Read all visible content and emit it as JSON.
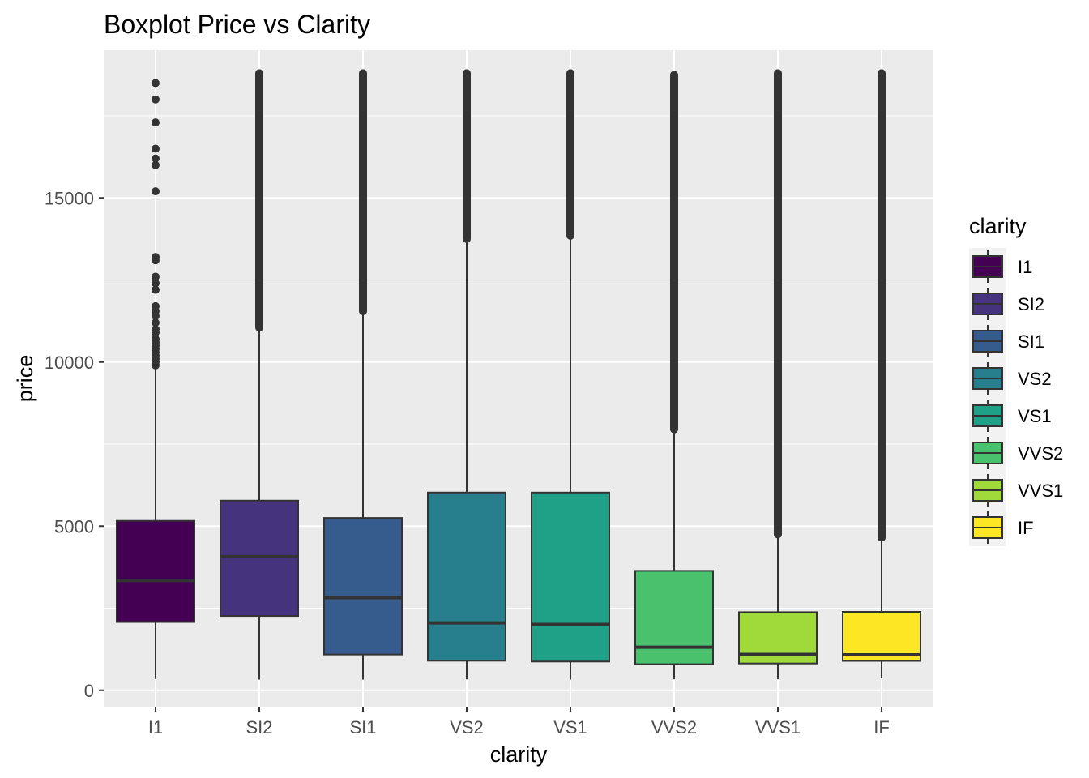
{
  "chart_data": {
    "type": "boxplot",
    "title": "Boxplot Price vs Clarity",
    "xlabel": "clarity",
    "ylabel": "price",
    "ylim": [
      -500,
      19500
    ],
    "y_ticks": [
      0,
      5000,
      10000,
      15000
    ],
    "grid": true,
    "legend": {
      "title": "clarity",
      "position": "right"
    },
    "categories": [
      "I1",
      "SI2",
      "SI1",
      "VS2",
      "VS1",
      "VVS2",
      "VVS1",
      "IF"
    ],
    "colors": [
      "#440154",
      "#46337E",
      "#365C8D",
      "#277F8E",
      "#1FA187",
      "#4AC16D",
      "#9FDA3A",
      "#FDE725"
    ],
    "boxes": [
      {
        "category": "I1",
        "min": 345,
        "q1": 2080,
        "median": 3344,
        "q3": 5161,
        "whisker_high": 9800,
        "outliers": [
          9900,
          10000,
          10100,
          10200,
          10300,
          10400,
          10500,
          10600,
          10700,
          10900,
          11000,
          11200,
          11400,
          11550,
          11700,
          12200,
          12400,
          12600,
          13100,
          13200,
          15200,
          16000,
          16200,
          16500,
          17300,
          18000,
          18500
        ]
      },
      {
        "category": "SI2",
        "min": 326,
        "q1": 2264,
        "median": 4072,
        "q3": 5777,
        "whisker_high": 11000,
        "outliers_dense_range": [
          11050,
          18800
        ]
      },
      {
        "category": "SI1",
        "min": 326,
        "q1": 1089,
        "median": 2822,
        "q3": 5250,
        "whisker_high": 11500,
        "outliers_dense_range": [
          11550,
          18800
        ]
      },
      {
        "category": "VS2",
        "min": 334,
        "q1": 900,
        "median": 2054,
        "q3": 6024,
        "whisker_high": 13700,
        "outliers_dense_range": [
          13750,
          18800
        ]
      },
      {
        "category": "VS1",
        "min": 327,
        "q1": 876,
        "median": 2005,
        "q3": 6023,
        "whisker_high": 13800,
        "outliers_dense_range": [
          13850,
          18800
        ]
      },
      {
        "category": "VVS2",
        "min": 336,
        "q1": 794,
        "median": 1311,
        "q3": 3638,
        "whisker_high": 7900,
        "outliers_dense_range": [
          7950,
          18750
        ]
      },
      {
        "category": "VVS1",
        "min": 336,
        "q1": 816,
        "median": 1093,
        "q3": 2379,
        "whisker_high": 4700,
        "outliers_dense_range": [
          4750,
          18800
        ]
      },
      {
        "category": "IF",
        "min": 369,
        "q1": 895,
        "median": 1080,
        "q3": 2389,
        "whisker_high": 4600,
        "outliers_dense_range": [
          4650,
          18800
        ]
      }
    ]
  }
}
